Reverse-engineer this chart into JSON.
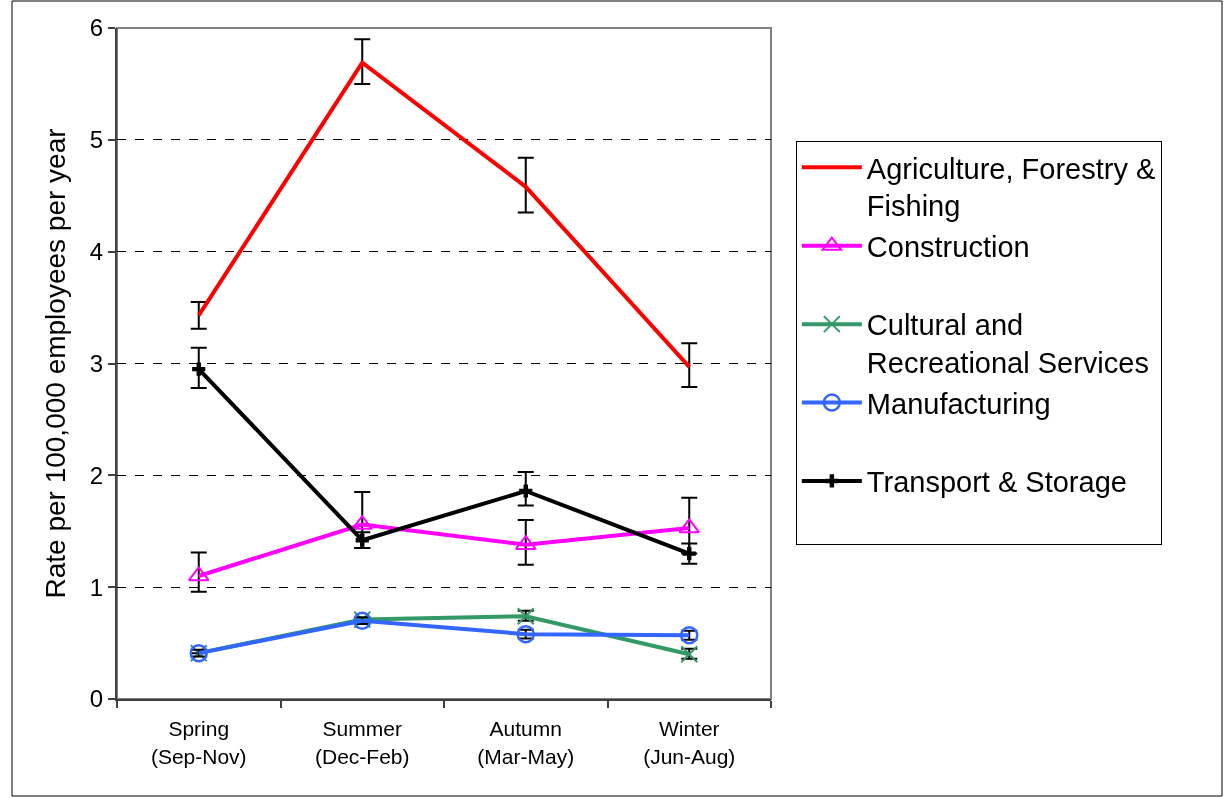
{
  "chart_data": {
    "type": "line",
    "ylabel": "Rate per 100,000 employees per year",
    "categories": [
      "Spring (Sep-Nov)",
      "Summer (Dec-Feb)",
      "Autumn (Mar-May)",
      "Winter (Jun-Aug)"
    ],
    "ylim": [
      0,
      6
    ],
    "yticks": [
      0,
      1,
      2,
      3,
      4,
      5,
      6
    ],
    "grid": "y",
    "legend": "right",
    "line_style": "solid",
    "series": [
      {
        "name": "Agriculture, Forestry & Fishing",
        "color": "#ff0000",
        "values": [
          3.43,
          5.69,
          4.58,
          2.97
        ],
        "errors": [
          [
            3.31,
            3.55
          ],
          [
            5.5,
            5.9
          ],
          [
            4.35,
            4.84
          ],
          [
            2.79,
            3.18
          ]
        ]
      },
      {
        "name": "Construction",
        "color": "#ff00ff",
        "marker": "triangle",
        "values": [
          1.1,
          1.56,
          1.38,
          1.53
        ],
        "errors": [
          [
            0.96,
            1.31
          ],
          [
            1.35,
            1.85
          ],
          [
            1.2,
            1.6
          ],
          [
            1.3,
            1.8
          ]
        ]
      },
      {
        "name": "Cultural and Recreational Services",
        "color": "#339966",
        "marker": "x",
        "values": [
          0.41,
          0.71,
          0.74,
          0.4
        ],
        "errors": [
          null,
          null,
          [
            0.7,
            0.79
          ],
          [
            0.36,
            0.45
          ]
        ]
      },
      {
        "name": "Manufacturing",
        "color": "#3366ff",
        "marker": "circle",
        "values": [
          0.41,
          0.7,
          0.58,
          0.57
        ],
        "errors": [
          [
            0.38,
            0.44
          ],
          [
            0.67,
            0.73
          ],
          [
            0.54,
            0.62
          ],
          [
            0.53,
            0.61
          ]
        ]
      },
      {
        "name": "Transport & Storage",
        "color": "#000000",
        "marker": "cross",
        "values": [
          2.95,
          1.42,
          1.86,
          1.3
        ],
        "errors": [
          [
            2.78,
            3.14
          ],
          [
            1.35,
            1.49
          ],
          [
            1.73,
            2.03
          ],
          [
            1.21,
            1.39
          ]
        ]
      }
    ]
  }
}
